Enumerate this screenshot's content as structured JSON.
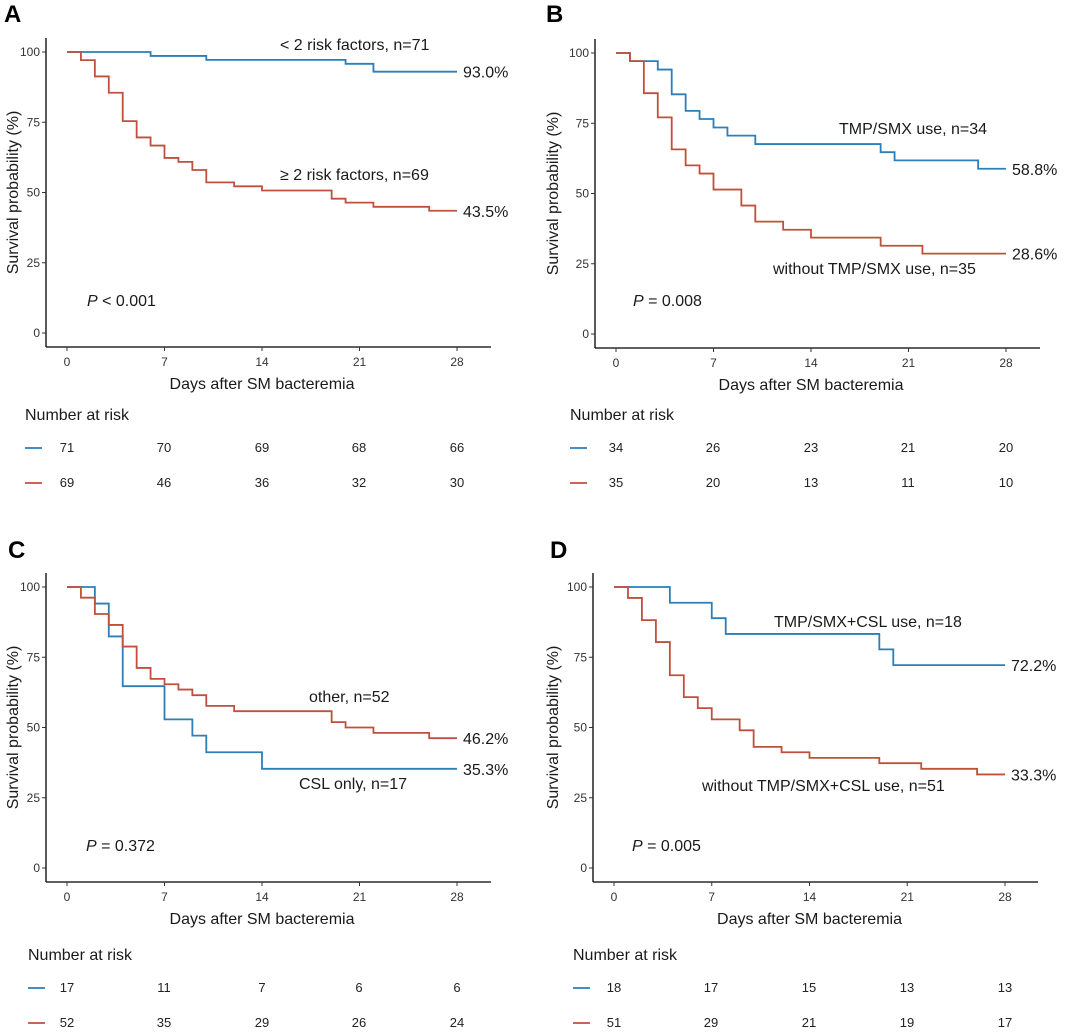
{
  "colors": {
    "blue": "#2a7fb8",
    "red": "#c0503d",
    "axis": "#000000"
  },
  "chart_data": [
    {
      "id": "A",
      "type": "line",
      "panel_label": "A",
      "xlabel": "Days after SM bacteremia",
      "ylabel": "Survival probability (%)",
      "xlim": [
        0,
        28
      ],
      "ylim": [
        0,
        100
      ],
      "xticks": [
        0,
        7,
        14,
        21,
        28
      ],
      "yticks": [
        0,
        25,
        50,
        75,
        100
      ],
      "p_value_prefix": "P",
      "p_value_text": " < 0.001",
      "series": [
        {
          "name": "< 2 risk factors, n=71",
          "color": "blue",
          "end_label": "93.0%",
          "steps": [
            [
              0,
              100
            ],
            [
              6,
              98.6
            ],
            [
              10,
              97.2
            ],
            [
              20,
              95.8
            ],
            [
              22,
              93.0
            ],
            [
              28,
              93.0
            ]
          ]
        },
        {
          "name": "≥ 2 risk factors, n=69",
          "color": "red",
          "end_label": "43.5%",
          "steps": [
            [
              0,
              100
            ],
            [
              1,
              97.1
            ],
            [
              2,
              91.3
            ],
            [
              3,
              85.5
            ],
            [
              4,
              75.4
            ],
            [
              5,
              69.6
            ],
            [
              6,
              66.7
            ],
            [
              7,
              62.3
            ],
            [
              8,
              60.9
            ],
            [
              9,
              58.0
            ],
            [
              10,
              53.6
            ],
            [
              12,
              52.2
            ],
            [
              14,
              50.7
            ],
            [
              19,
              47.8
            ],
            [
              20,
              46.4
            ],
            [
              22,
              44.9
            ],
            [
              26,
              43.5
            ],
            [
              28,
              43.5
            ]
          ]
        }
      ],
      "number_at_risk": {
        "title": "Number at risk",
        "rows": [
          {
            "color": "blue",
            "values": [
              71,
              70,
              69,
              68,
              66
            ]
          },
          {
            "color": "red",
            "values": [
              69,
              46,
              36,
              32,
              30
            ]
          }
        ]
      }
    },
    {
      "id": "B",
      "type": "line",
      "panel_label": "B",
      "xlabel": "Days after SM bacteremia",
      "ylabel": "Survival probability (%)",
      "xlim": [
        0,
        28
      ],
      "ylim": [
        0,
        100
      ],
      "xticks": [
        0,
        7,
        14,
        21,
        28
      ],
      "yticks": [
        0,
        25,
        50,
        75,
        100
      ],
      "p_value_prefix": "P",
      "p_value_text": " = 0.008",
      "series": [
        {
          "name": "TMP/SMX use, n=34",
          "color": "blue",
          "end_label": "58.8%",
          "steps": [
            [
              0,
              100
            ],
            [
              1,
              97.1
            ],
            [
              3,
              94.1
            ],
            [
              4,
              85.3
            ],
            [
              5,
              79.4
            ],
            [
              6,
              76.5
            ],
            [
              7,
              73.5
            ],
            [
              8,
              70.6
            ],
            [
              10,
              67.6
            ],
            [
              19,
              64.7
            ],
            [
              20,
              61.8
            ],
            [
              26,
              58.8
            ],
            [
              28,
              58.8
            ]
          ]
        },
        {
          "name": "without TMP/SMX use, n=35",
          "color": "red",
          "end_label": "28.6%",
          "steps": [
            [
              0,
              100
            ],
            [
              1,
              97.1
            ],
            [
              2,
              85.7
            ],
            [
              3,
              77.1
            ],
            [
              4,
              65.7
            ],
            [
              5,
              60.0
            ],
            [
              6,
              57.1
            ],
            [
              7,
              51.4
            ],
            [
              9,
              45.7
            ],
            [
              10,
              40.0
            ],
            [
              12,
              37.1
            ],
            [
              14,
              34.3
            ],
            [
              19,
              31.4
            ],
            [
              22,
              28.6
            ],
            [
              28,
              28.6
            ]
          ]
        }
      ],
      "number_at_risk": {
        "title": "Number at risk",
        "rows": [
          {
            "color": "blue",
            "values": [
              34,
              26,
              23,
              21,
              20
            ]
          },
          {
            "color": "red",
            "values": [
              35,
              20,
              13,
              11,
              10
            ]
          }
        ]
      }
    },
    {
      "id": "C",
      "type": "line",
      "panel_label": "C",
      "xlabel": "Days after SM bacteremia",
      "ylabel": "Survival probability (%)",
      "xlim": [
        0,
        28
      ],
      "ylim": [
        0,
        100
      ],
      "xticks": [
        0,
        7,
        14,
        21,
        28
      ],
      "yticks": [
        0,
        25,
        50,
        75,
        100
      ],
      "p_value_prefix": "P",
      "p_value_text": " = 0.372",
      "series": [
        {
          "name": "CSL only, n=17",
          "color": "blue",
          "end_label": "35.3%",
          "steps": [
            [
              0,
              100
            ],
            [
              2,
              94.1
            ],
            [
              3,
              82.4
            ],
            [
              4,
              64.7
            ],
            [
              7,
              52.9
            ],
            [
              9,
              47.1
            ],
            [
              10,
              41.2
            ],
            [
              14,
              35.3
            ],
            [
              28,
              35.3
            ]
          ]
        },
        {
          "name": "other, n=52",
          "color": "red",
          "end_label": "46.2%",
          "steps": [
            [
              0,
              100
            ],
            [
              1,
              96.2
            ],
            [
              2,
              90.4
            ],
            [
              3,
              86.5
            ],
            [
              4,
              78.8
            ],
            [
              5,
              71.2
            ],
            [
              6,
              67.3
            ],
            [
              7,
              65.4
            ],
            [
              8,
              63.5
            ],
            [
              9,
              61.5
            ],
            [
              10,
              57.7
            ],
            [
              12,
              55.8
            ],
            [
              19,
              51.9
            ],
            [
              20,
              50.0
            ],
            [
              22,
              48.1
            ],
            [
              26,
              46.2
            ],
            [
              28,
              46.2
            ]
          ]
        }
      ],
      "number_at_risk": {
        "title": "Number at risk",
        "rows": [
          {
            "color": "blue",
            "values": [
              17,
              11,
              7,
              6,
              6
            ]
          },
          {
            "color": "red",
            "values": [
              52,
              35,
              29,
              26,
              24
            ]
          }
        ]
      }
    },
    {
      "id": "D",
      "type": "line",
      "panel_label": "D",
      "xlabel": "Days after SM bacteremia",
      "ylabel": "Survival probability (%)",
      "xlim": [
        0,
        28
      ],
      "ylim": [
        0,
        100
      ],
      "xticks": [
        0,
        7,
        14,
        21,
        28
      ],
      "yticks": [
        0,
        25,
        50,
        75,
        100
      ],
      "p_value_prefix": "P",
      "p_value_text": " = 0.005",
      "series": [
        {
          "name": "TMP/SMX+CSL use, n=18",
          "color": "blue",
          "end_label": "72.2%",
          "steps": [
            [
              0,
              100
            ],
            [
              4,
              94.4
            ],
            [
              7,
              88.9
            ],
            [
              8,
              83.3
            ],
            [
              19,
              77.8
            ],
            [
              20,
              72.2
            ],
            [
              28,
              72.2
            ]
          ]
        },
        {
          "name": "without TMP/SMX+CSL use, n=51",
          "color": "red",
          "end_label": "33.3%",
          "steps": [
            [
              0,
              100
            ],
            [
              1,
              96.1
            ],
            [
              2,
              88.2
            ],
            [
              3,
              80.4
            ],
            [
              4,
              68.6
            ],
            [
              5,
              60.8
            ],
            [
              6,
              56.9
            ],
            [
              7,
              52.9
            ],
            [
              9,
              49.0
            ],
            [
              10,
              43.1
            ],
            [
              12,
              41.2
            ],
            [
              14,
              39.2
            ],
            [
              19,
              37.3
            ],
            [
              22,
              35.3
            ],
            [
              26,
              33.3
            ],
            [
              28,
              33.3
            ]
          ]
        }
      ],
      "number_at_risk": {
        "title": "Number at risk",
        "rows": [
          {
            "color": "blue",
            "values": [
              18,
              17,
              15,
              13,
              13
            ]
          },
          {
            "color": "red",
            "values": [
              51,
              29,
              21,
              19,
              17
            ]
          }
        ]
      }
    }
  ]
}
